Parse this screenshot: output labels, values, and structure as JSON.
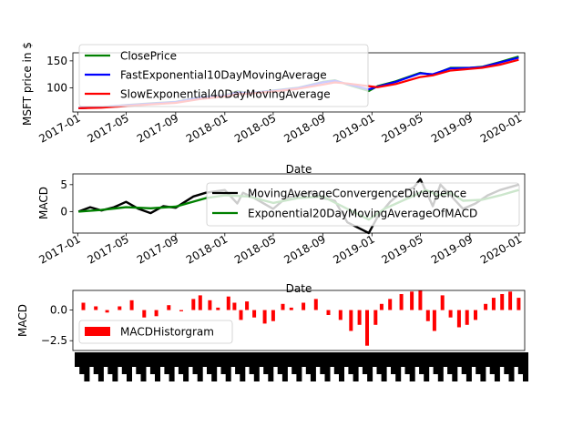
{
  "chart_data": [
    {
      "type": "line",
      "ylabel": "MSFT price in $",
      "xlabel": "Date",
      "x_range": [
        "2016-12-20",
        "2020-01-15"
      ],
      "y_range": [
        55,
        165
      ],
      "yticks": [
        100,
        150
      ],
      "xticks": [
        "2017-01",
        "2017-05",
        "2017-09",
        "2018-01",
        "2018-05",
        "2018-09",
        "2019-01",
        "2019-05",
        "2019-09",
        "2020-01"
      ],
      "legend": {
        "placement": "upper-left"
      },
      "series": [
        {
          "name": "ClosePrice",
          "color": "#008000",
          "points": [
            [
              "2017-01-03",
              62
            ],
            [
              "2017-03-01",
              64
            ],
            [
              "2017-05-01",
              68
            ],
            [
              "2017-07-01",
              71
            ],
            [
              "2017-09-01",
              74
            ],
            [
              "2017-11-01",
              83
            ],
            [
              "2018-01-02",
              86
            ],
            [
              "2018-02-01",
              94
            ],
            [
              "2018-03-01",
              90
            ],
            [
              "2018-05-01",
              95
            ],
            [
              "2018-07-01",
              100
            ],
            [
              "2018-09-01",
              111
            ],
            [
              "2018-10-01",
              114
            ],
            [
              "2018-11-01",
              106
            ],
            [
              "2018-12-24",
              94
            ],
            [
              "2019-01-15",
              103
            ],
            [
              "2019-03-01",
              112
            ],
            [
              "2019-05-01",
              128
            ],
            [
              "2019-06-01",
              124
            ],
            [
              "2019-07-15",
              137
            ],
            [
              "2019-09-01",
              137
            ],
            [
              "2019-10-01",
              139
            ],
            [
              "2019-11-15",
              148
            ],
            [
              "2019-12-31",
              158
            ]
          ]
        },
        {
          "name": "FastExponential10DayMovingAverage",
          "color": "#0000ff",
          "points": [
            [
              "2017-01-03",
              62
            ],
            [
              "2017-03-01",
              64
            ],
            [
              "2017-05-01",
              67.5
            ],
            [
              "2017-07-01",
              70.5
            ],
            [
              "2017-09-01",
              73.5
            ],
            [
              "2017-11-01",
              82
            ],
            [
              "2018-01-02",
              85.5
            ],
            [
              "2018-02-01",
              92
            ],
            [
              "2018-03-01",
              90
            ],
            [
              "2018-05-01",
              94.5
            ],
            [
              "2018-07-01",
              99.5
            ],
            [
              "2018-09-01",
              110
            ],
            [
              "2018-10-01",
              113
            ],
            [
              "2018-11-01",
              107
            ],
            [
              "2018-12-24",
              97
            ],
            [
              "2019-01-15",
              102
            ],
            [
              "2019-03-01",
              111
            ],
            [
              "2019-05-01",
              127
            ],
            [
              "2019-06-01",
              125
            ],
            [
              "2019-07-15",
              136
            ],
            [
              "2019-09-01",
              137
            ],
            [
              "2019-10-01",
              138.5
            ],
            [
              "2019-11-15",
              147
            ],
            [
              "2019-12-31",
              156
            ]
          ]
        },
        {
          "name": "SlowExponential40DayMovingAverage",
          "color": "#ff0000",
          "points": [
            [
              "2017-01-03",
              62
            ],
            [
              "2017-03-01",
              63
            ],
            [
              "2017-05-01",
              66
            ],
            [
              "2017-07-01",
              69
            ],
            [
              "2017-09-01",
              72
            ],
            [
              "2017-11-01",
              79
            ],
            [
              "2018-01-02",
              84
            ],
            [
              "2018-02-01",
              88
            ],
            [
              "2018-03-01",
              89
            ],
            [
              "2018-05-01",
              93
            ],
            [
              "2018-07-01",
              98
            ],
            [
              "2018-09-01",
              106
            ],
            [
              "2018-10-01",
              110
            ],
            [
              "2018-11-01",
              108
            ],
            [
              "2018-12-24",
              103
            ],
            [
              "2019-01-15",
              101
            ],
            [
              "2019-03-01",
              107
            ],
            [
              "2019-05-01",
              120
            ],
            [
              "2019-06-01",
              123
            ],
            [
              "2019-07-15",
              132
            ],
            [
              "2019-09-01",
              135
            ],
            [
              "2019-10-01",
              137
            ],
            [
              "2019-11-15",
              143
            ],
            [
              "2019-12-31",
              152
            ]
          ]
        }
      ]
    },
    {
      "type": "line",
      "ylabel": "MACD",
      "xlabel": "Date",
      "x_range": [
        "2016-12-20",
        "2020-01-15"
      ],
      "y_range": [
        -4,
        7
      ],
      "yticks": [
        0,
        5
      ],
      "xticks": [
        "2017-01",
        "2017-05",
        "2017-09",
        "2018-01",
        "2018-05",
        "2018-09",
        "2019-01",
        "2019-05",
        "2019-09",
        "2020-01"
      ],
      "legend": {
        "placement": "right"
      },
      "series": [
        {
          "name": "MovingAverageConvergenceDivergence",
          "color": "#000000",
          "points": [
            [
              "2017-01-03",
              0
            ],
            [
              "2017-02-01",
              0.8
            ],
            [
              "2017-03-01",
              0.2
            ],
            [
              "2017-04-01",
              0.8
            ],
            [
              "2017-05-01",
              1.8
            ],
            [
              "2017-06-01",
              0.5
            ],
            [
              "2017-07-01",
              -0.3
            ],
            [
              "2017-08-01",
              1
            ],
            [
              "2017-09-01",
              0.7
            ],
            [
              "2017-10-15",
              2.8
            ],
            [
              "2017-11-15",
              3.5
            ],
            [
              "2018-01-01",
              4
            ],
            [
              "2018-02-01",
              1.5
            ],
            [
              "2018-02-15",
              3.5
            ],
            [
              "2018-03-15",
              2.5
            ],
            [
              "2018-05-01",
              0.5
            ],
            [
              "2018-06-01",
              2.5
            ],
            [
              "2018-07-01",
              3
            ],
            [
              "2018-08-01",
              3.5
            ],
            [
              "2018-09-01",
              2.5
            ],
            [
              "2018-10-01",
              2
            ],
            [
              "2018-11-01",
              -2
            ],
            [
              "2018-12-24",
              -4
            ],
            [
              "2019-01-15",
              -1
            ],
            [
              "2019-02-15",
              1.8
            ],
            [
              "2019-03-15",
              3.5
            ],
            [
              "2019-04-15",
              4.5
            ],
            [
              "2019-05-01",
              6
            ],
            [
              "2019-05-20",
              3
            ],
            [
              "2019-06-01",
              1
            ],
            [
              "2019-06-20",
              5
            ],
            [
              "2019-07-15",
              3
            ],
            [
              "2019-08-15",
              0.5
            ],
            [
              "2019-09-15",
              1.5
            ],
            [
              "2019-10-15",
              3
            ],
            [
              "2019-11-15",
              4
            ],
            [
              "2019-12-31",
              5
            ]
          ]
        },
        {
          "name": "Exponential20DayMovingAverageOfMACD",
          "color": "#008000",
          "points": [
            [
              "2017-01-03",
              0
            ],
            [
              "2017-03-01",
              0.3
            ],
            [
              "2017-05-01",
              0.8
            ],
            [
              "2017-07-01",
              0.6
            ],
            [
              "2017-09-01",
              0.9
            ],
            [
              "2017-11-15",
              2.5
            ],
            [
              "2018-01-01",
              3
            ],
            [
              "2018-03-01",
              2.8
            ],
            [
              "2018-05-01",
              1.6
            ],
            [
              "2018-07-01",
              2.5
            ],
            [
              "2018-09-01",
              2.8
            ],
            [
              "2018-11-01",
              0.5
            ],
            [
              "2018-12-24",
              -1.5
            ],
            [
              "2019-02-01",
              0.5
            ],
            [
              "2019-04-01",
              2.5
            ],
            [
              "2019-05-15",
              4
            ],
            [
              "2019-06-15",
              3
            ],
            [
              "2019-07-15",
              3.5
            ],
            [
              "2019-08-15",
              2
            ],
            [
              "2019-10-01",
              2.2
            ],
            [
              "2019-11-15",
              3
            ],
            [
              "2019-12-31",
              4
            ]
          ]
        }
      ]
    },
    {
      "type": "bar",
      "ylabel": "MACD",
      "x_range": [
        "2016-12-20",
        "2020-01-15"
      ],
      "y_range": [
        -3.3,
        1.6
      ],
      "yticks": [
        -2.5,
        0.0
      ],
      "ytick_labels": [
        "−2.5",
        "0.0"
      ],
      "legend": {
        "placement": "lower-left"
      },
      "series": [
        {
          "name": "MACDHistorgram",
          "color": "#ff0000",
          "points": [
            [
              "2017-01-15",
              0.6
            ],
            [
              "2017-02-15",
              0.3
            ],
            [
              "2017-03-15",
              -0.2
            ],
            [
              "2017-04-15",
              0.3
            ],
            [
              "2017-05-15",
              0.8
            ],
            [
              "2017-06-15",
              -0.6
            ],
            [
              "2017-07-15",
              -0.5
            ],
            [
              "2017-08-15",
              0.4
            ],
            [
              "2017-09-15",
              -0.1
            ],
            [
              "2017-10-15",
              0.9
            ],
            [
              "2017-11-01",
              1.2
            ],
            [
              "2017-11-25",
              0.8
            ],
            [
              "2017-12-15",
              0.2
            ],
            [
              "2018-01-10",
              1.1
            ],
            [
              "2018-01-25",
              0.6
            ],
            [
              "2018-02-10",
              -0.8
            ],
            [
              "2018-02-25",
              0.7
            ],
            [
              "2018-03-15",
              -0.6
            ],
            [
              "2018-04-10",
              -1.1
            ],
            [
              "2018-05-01",
              -0.9
            ],
            [
              "2018-05-25",
              0.5
            ],
            [
              "2018-06-15",
              0.2
            ],
            [
              "2018-07-15",
              0.6
            ],
            [
              "2018-08-15",
              0.9
            ],
            [
              "2018-09-15",
              -0.4
            ],
            [
              "2018-10-15",
              -0.8
            ],
            [
              "2018-11-10",
              -1.7
            ],
            [
              "2018-12-01",
              -1.2
            ],
            [
              "2018-12-20",
              -2.9
            ],
            [
              "2019-01-10",
              -1.2
            ],
            [
              "2019-01-25",
              0.5
            ],
            [
              "2019-02-15",
              0.9
            ],
            [
              "2019-03-15",
              1.3
            ],
            [
              "2019-04-10",
              1.5
            ],
            [
              "2019-05-01",
              1.6
            ],
            [
              "2019-05-20",
              -0.9
            ],
            [
              "2019-06-05",
              -1.7
            ],
            [
              "2019-06-25",
              1.2
            ],
            [
              "2019-07-15",
              -0.6
            ],
            [
              "2019-08-05",
              -1.4
            ],
            [
              "2019-08-25",
              -1.2
            ],
            [
              "2019-09-15",
              -0.8
            ],
            [
              "2019-10-10",
              0.5
            ],
            [
              "2019-10-30",
              1
            ],
            [
              "2019-11-20",
              1.3
            ],
            [
              "2019-12-10",
              1.5
            ],
            [
              "2019-12-31",
              1
            ]
          ]
        }
      ]
    }
  ]
}
